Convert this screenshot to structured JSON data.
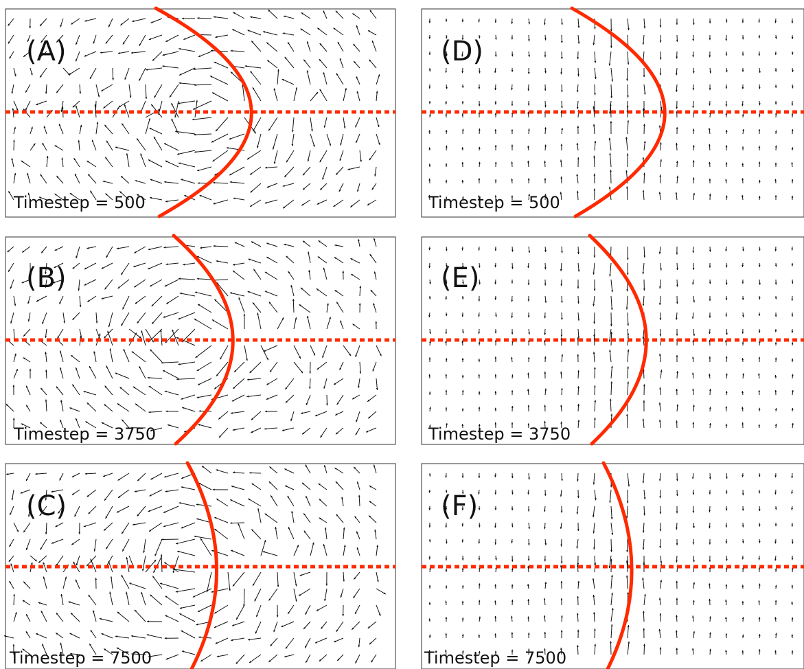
{
  "colors": {
    "front": "#ff2a00",
    "arrow": "#111111",
    "frame": "#555555"
  },
  "panels": [
    {
      "id": "A",
      "label": "(A)",
      "timestep": "Timestep = 500",
      "field": "vortex"
    },
    {
      "id": "B",
      "label": "(B)",
      "timestep": "Timestep = 3750",
      "field": "vortex"
    },
    {
      "id": "C",
      "label": "(C)",
      "timestep": "Timestep = 7500",
      "field": "vortex"
    },
    {
      "id": "D",
      "label": "(D)",
      "timestep": "Timestep = 500",
      "field": "laminar"
    },
    {
      "id": "E",
      "label": "(E)",
      "timestep": "Timestep = 3750",
      "field": "laminar"
    },
    {
      "id": "F",
      "label": "(F)",
      "timestep": "Timestep = 7500",
      "field": "laminar"
    }
  ]
}
